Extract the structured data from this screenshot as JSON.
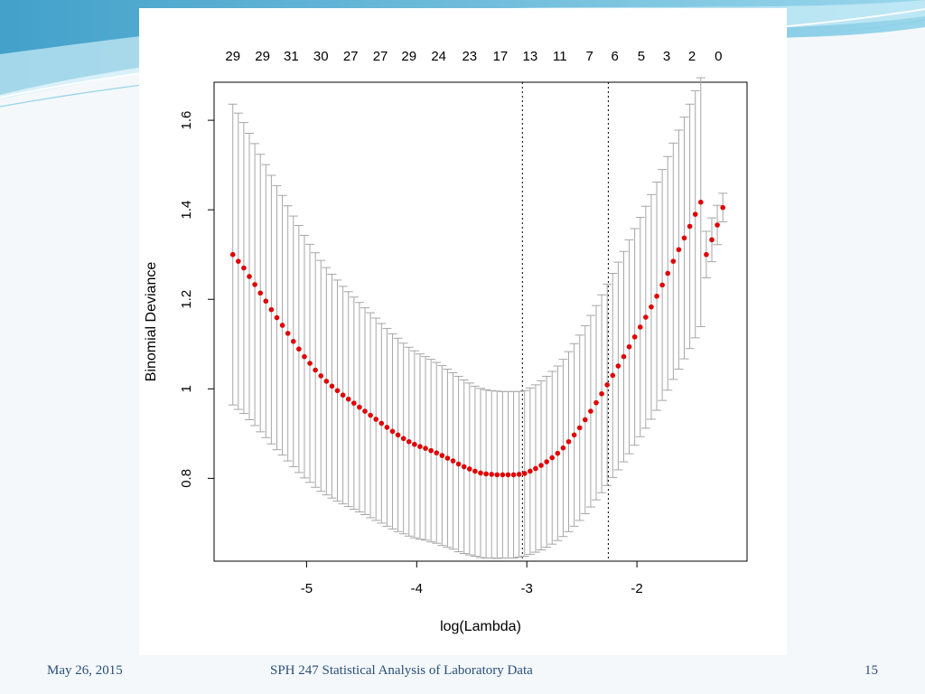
{
  "slide": {
    "footer_date": "May 26, 2015",
    "footer_title": "SPH 247 Statistical Analysis of Laboratory Data",
    "page_number": "15",
    "accent_colors": [
      "#3aa6cc",
      "#bfe4f1",
      "#2a4f7a"
    ]
  },
  "chart_data": {
    "type": "scatter",
    "title": "",
    "xlabel": "log(Lambda)",
    "ylabel": "Binomial Deviance",
    "xlim": [
      -5.84,
      -1.0
    ],
    "ylim": [
      0.615,
      1.685
    ],
    "x_ticks": [
      -5,
      -4,
      -3,
      -2
    ],
    "y_ticks": [
      0.8,
      1.0,
      1.2,
      1.4,
      1.6
    ],
    "grid": false,
    "legend": "none",
    "point_color": "#e00000",
    "errorbar_color": "#a6a6a6",
    "vlines": [
      -3.04,
      -2.26
    ],
    "top_axis": {
      "x": [
        -5.67,
        -5.4,
        -5.14,
        -4.87,
        -4.6,
        -4.33,
        -4.07,
        -3.8,
        -3.52,
        -3.24,
        -2.97,
        -2.7,
        -2.43,
        -2.2,
        -1.96,
        -1.73,
        -1.5,
        -1.26
      ],
      "labels": [
        "29",
        "29",
        "31",
        "30",
        "27",
        "27",
        "29",
        "24",
        "23",
        "17",
        "13",
        "11",
        "7",
        "6",
        "5",
        "3",
        "2",
        "0"
      ]
    },
    "series": [
      {
        "x": [
          -5.67,
          -5.62,
          -5.57,
          -5.52,
          -5.47,
          -5.42,
          -5.37,
          -5.32,
          -5.27,
          -5.22,
          -5.17,
          -5.12,
          -5.07,
          -5.02,
          -4.97,
          -4.92,
          -4.87,
          -4.82,
          -4.77,
          -4.72,
          -4.67,
          -4.62,
          -4.57,
          -4.52,
          -4.47,
          -4.42,
          -4.37,
          -4.32,
          -4.27,
          -4.22,
          -4.17,
          -4.12,
          -4.07,
          -4.02,
          -3.97,
          -3.92,
          -3.87,
          -3.82,
          -3.77,
          -3.72,
          -3.67,
          -3.62,
          -3.57,
          -3.52,
          -3.47,
          -3.42,
          -3.37,
          -3.32,
          -3.27,
          -3.22,
          -3.17,
          -3.12,
          -3.07,
          -3.02,
          -2.97,
          -2.92,
          -2.87,
          -2.82,
          -2.77,
          -2.72,
          -2.67,
          -2.62,
          -2.57,
          -2.52,
          -2.47,
          -2.42,
          -2.37,
          -2.32,
          -2.27,
          -2.22,
          -2.17,
          -2.12,
          -2.07,
          -2.02,
          -1.97,
          -1.92,
          -1.87,
          -1.82,
          -1.77,
          -1.72,
          -1.67,
          -1.62,
          -1.57,
          -1.52,
          -1.47,
          -1.42,
          -1.37,
          -1.32,
          -1.27,
          -1.22
        ],
        "y": [
          1.3,
          1.285,
          1.27,
          1.251,
          1.233,
          1.214,
          1.196,
          1.177,
          1.159,
          1.142,
          1.124,
          1.106,
          1.089,
          1.072,
          1.057,
          1.042,
          1.029,
          1.017,
          1.006,
          0.996,
          0.986,
          0.977,
          0.968,
          0.959,
          0.95,
          0.941,
          0.932,
          0.923,
          0.914,
          0.905,
          0.897,
          0.889,
          0.882,
          0.876,
          0.871,
          0.867,
          0.862,
          0.857,
          0.851,
          0.845,
          0.839,
          0.832,
          0.826,
          0.821,
          0.816,
          0.812,
          0.81,
          0.809,
          0.808,
          0.808,
          0.808,
          0.808,
          0.809,
          0.811,
          0.816,
          0.822,
          0.829,
          0.837,
          0.846,
          0.856,
          0.868,
          0.882,
          0.897,
          0.913,
          0.931,
          0.95,
          0.969,
          0.989,
          1.009,
          1.03,
          1.051,
          1.072,
          1.094,
          1.116,
          1.138,
          1.16,
          1.183,
          1.207,
          1.232,
          1.258,
          1.285,
          1.311,
          1.337,
          1.363,
          1.39,
          1.417,
          1.3,
          1.333,
          1.366,
          1.405
        ],
        "upper": [
          1.636,
          1.616,
          1.595,
          1.571,
          1.548,
          1.524,
          1.501,
          1.477,
          1.454,
          1.432,
          1.409,
          1.386,
          1.365,
          1.343,
          1.323,
          1.304,
          1.287,
          1.271,
          1.256,
          1.243,
          1.229,
          1.217,
          1.205,
          1.193,
          1.181,
          1.17,
          1.158,
          1.146,
          1.135,
          1.123,
          1.113,
          1.102,
          1.093,
          1.085,
          1.078,
          1.072,
          1.066,
          1.059,
          1.052,
          1.044,
          1.036,
          1.028,
          1.02,
          1.013,
          1.006,
          1.001,
          0.998,
          0.996,
          0.995,
          0.994,
          0.994,
          0.994,
          0.994,
          0.996,
          1.002,
          1.009,
          1.018,
          1.028,
          1.039,
          1.051,
          1.066,
          1.083,
          1.101,
          1.12,
          1.141,
          1.164,
          1.186,
          1.21,
          1.234,
          1.258,
          1.283,
          1.307,
          1.333,
          1.358,
          1.383,
          1.408,
          1.434,
          1.462,
          1.49,
          1.519,
          1.549,
          1.578,
          1.607,
          1.636,
          1.666,
          1.695,
          1.352,
          1.382,
          1.41,
          1.437
        ],
        "lower": [
          0.964,
          0.954,
          0.945,
          0.931,
          0.918,
          0.904,
          0.891,
          0.877,
          0.864,
          0.852,
          0.839,
          0.826,
          0.813,
          0.801,
          0.791,
          0.78,
          0.771,
          0.763,
          0.756,
          0.749,
          0.743,
          0.737,
          0.731,
          0.725,
          0.719,
          0.712,
          0.706,
          0.7,
          0.693,
          0.687,
          0.681,
          0.676,
          0.671,
          0.667,
          0.664,
          0.662,
          0.658,
          0.655,
          0.65,
          0.646,
          0.642,
          0.636,
          0.632,
          0.629,
          0.626,
          0.623,
          0.622,
          0.622,
          0.621,
          0.622,
          0.622,
          0.622,
          0.624,
          0.626,
          0.63,
          0.635,
          0.64,
          0.646,
          0.653,
          0.661,
          0.67,
          0.681,
          0.693,
          0.706,
          0.721,
          0.736,
          0.752,
          0.768,
          0.784,
          0.802,
          0.819,
          0.837,
          0.855,
          0.874,
          0.893,
          0.912,
          0.932,
          0.952,
          0.974,
          0.997,
          1.021,
          1.044,
          1.067,
          1.09,
          1.114,
          1.139,
          1.248,
          1.284,
          1.322,
          1.373
        ]
      }
    ]
  }
}
